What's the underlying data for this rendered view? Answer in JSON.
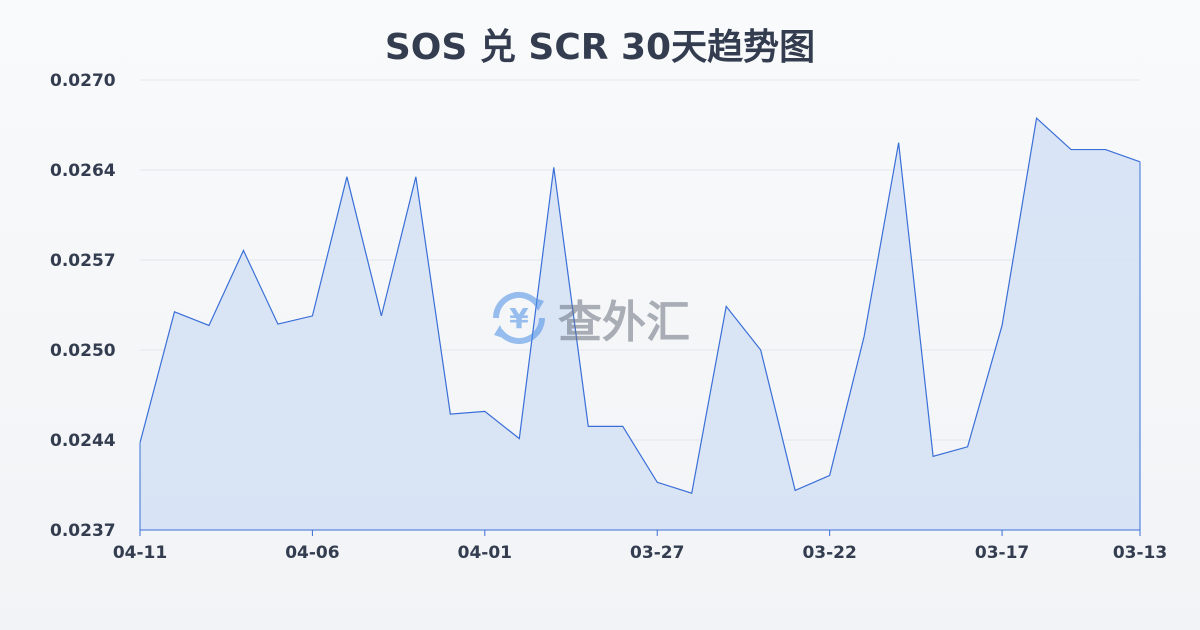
{
  "chart_data": {
    "type": "area",
    "title": "SOS 兑 SCR 30天趋势图",
    "x": [
      "04-11",
      "04-10",
      "04-09",
      "04-08",
      "04-07",
      "04-06",
      "04-05",
      "04-04",
      "04-03",
      "04-02",
      "04-01",
      "03-31",
      "03-30",
      "03-29",
      "03-28",
      "03-27",
      "03-26",
      "03-25",
      "03-24",
      "03-23",
      "03-22",
      "03-21",
      "03-20",
      "03-19",
      "03-18",
      "03-17",
      "03-16",
      "03-15",
      "03-14",
      "03-13"
    ],
    "values": [
      0.02434,
      0.0253,
      0.0252,
      0.02575,
      0.02521,
      0.02527,
      0.02629,
      0.02527,
      0.02629,
      0.02455,
      0.02457,
      0.02437,
      0.02636,
      0.02446,
      0.02446,
      0.02405,
      0.02397,
      0.02534,
      0.02502,
      0.02399,
      0.0241,
      0.02512,
      0.02654,
      0.02424,
      0.02431,
      0.0252,
      0.02672,
      0.02649,
      0.02649,
      0.0264
    ],
    "x_tick_labels": [
      "04-11",
      "04-06",
      "04-01",
      "03-27",
      "03-22",
      "03-17",
      "03-13"
    ],
    "y_tick_labels": [
      "0.0270",
      "0.0264",
      "0.0257",
      "0.0250",
      "0.0244",
      "0.0237"
    ],
    "ylim": [
      0.0237,
      0.027
    ],
    "grid": true,
    "line_color": "#3a6fd8",
    "fill_color": "#d4e0f5",
    "xlabel": "",
    "ylabel": ""
  },
  "watermark": {
    "text": "查外汇",
    "icon": "yen-exchange-icon"
  }
}
